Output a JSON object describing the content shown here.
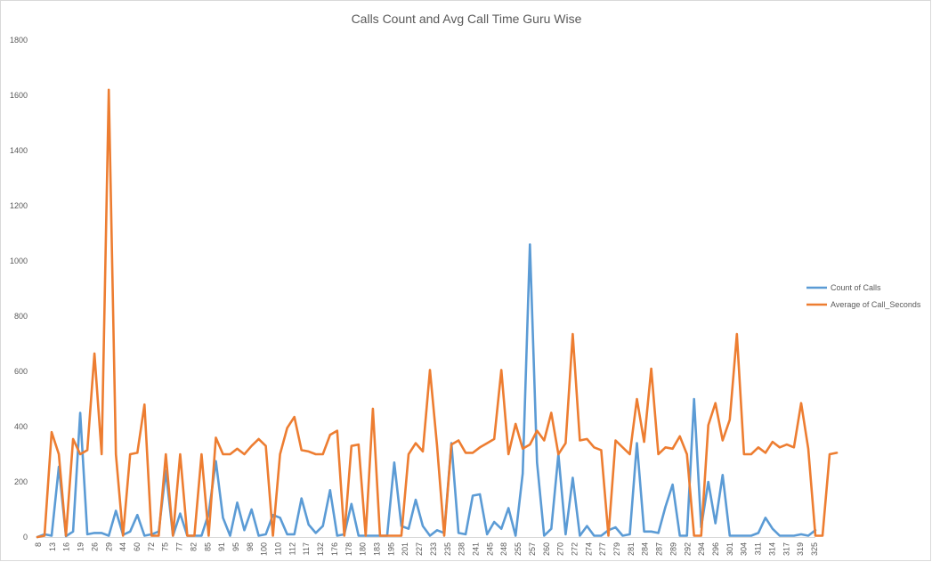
{
  "chart_data": {
    "type": "line",
    "title": "Calls Count and Avg Call Time Guru Wise",
    "xlabel": "",
    "ylabel": "",
    "ylim": [
      0,
      1800
    ],
    "yticks": [
      0,
      200,
      400,
      600,
      800,
      1000,
      1200,
      1400,
      1600,
      1800
    ],
    "grid": false,
    "legend_position": "right",
    "x_tick_labels": [
      "8",
      "13",
      "16",
      "19",
      "26",
      "29",
      "44",
      "60",
      "72",
      "75",
      "77",
      "82",
      "85",
      "91",
      "95",
      "98",
      "100",
      "110",
      "112",
      "117",
      "132",
      "176",
      "178",
      "180",
      "183",
      "195",
      "201",
      "227",
      "233",
      "235",
      "238",
      "241",
      "245",
      "248",
      "255",
      "257",
      "260",
      "270",
      "272",
      "274",
      "277",
      "279",
      "281",
      "284",
      "287",
      "289",
      "292",
      "294",
      "296",
      "301",
      "304",
      "311",
      "314",
      "317",
      "319",
      "325"
    ],
    "series": [
      {
        "name": "Count of Calls",
        "color": "#5b9bd5",
        "values": [
          0,
          10,
          5,
          255,
          3,
          20,
          450,
          10,
          15,
          15,
          5,
          95,
          8,
          20,
          80,
          5,
          10,
          20,
          240,
          5,
          85,
          5,
          5,
          5,
          85,
          275,
          70,
          5,
          125,
          25,
          100,
          5,
          10,
          80,
          70,
          10,
          10,
          140,
          45,
          15,
          40,
          170,
          5,
          10,
          120,
          5,
          5,
          5,
          5,
          5,
          270,
          40,
          30,
          135,
          40,
          5,
          25,
          15,
          340,
          15,
          10,
          150,
          155,
          10,
          55,
          30,
          105,
          5,
          230,
          1060,
          270,
          5,
          30,
          300,
          10,
          215,
          5,
          40,
          5,
          5,
          25,
          35,
          5,
          10,
          340,
          20,
          20,
          15,
          110,
          190,
          5,
          5,
          500,
          35,
          200,
          50,
          225,
          5,
          5,
          5,
          5,
          15,
          70,
          30,
          5,
          5,
          5,
          10,
          5,
          25
        ]
      },
      {
        "name": "Average of Call_Seconds",
        "color": "#ed7d31",
        "values": [
          0,
          5,
          380,
          300,
          5,
          355,
          300,
          315,
          665,
          300,
          1620,
          300,
          5,
          300,
          305,
          480,
          5,
          5,
          300,
          5,
          300,
          5,
          5,
          300,
          5,
          360,
          300,
          300,
          320,
          300,
          330,
          355,
          330,
          5,
          300,
          395,
          435,
          315,
          310,
          300,
          300,
          370,
          385,
          5,
          330,
          335,
          5,
          465,
          5,
          5,
          5,
          5,
          300,
          340,
          310,
          605,
          330,
          5,
          335,
          350,
          305,
          305,
          325,
          340,
          355,
          605,
          300,
          410,
          320,
          335,
          385,
          350,
          450,
          300,
          340,
          735,
          350,
          355,
          325,
          315,
          5,
          350,
          325,
          300,
          500,
          345,
          610,
          300,
          325,
          320,
          365,
          300,
          5,
          5,
          405,
          485,
          350,
          425,
          735,
          300,
          300,
          325,
          305,
          345,
          325,
          335,
          325,
          485,
          320,
          5,
          5,
          300,
          305
        ]
      }
    ]
  }
}
